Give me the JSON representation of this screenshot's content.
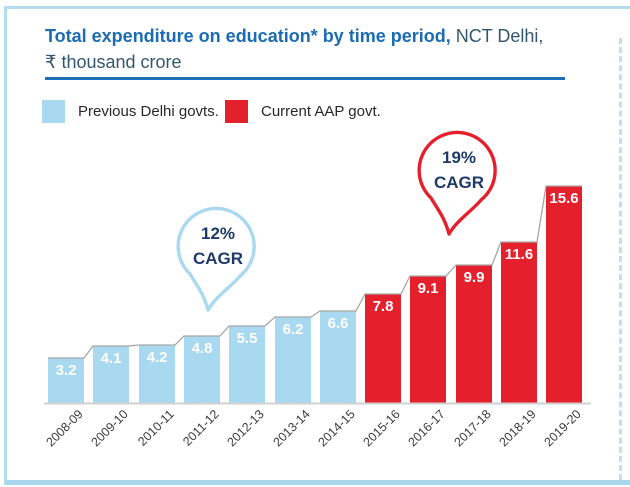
{
  "header": {
    "title_bold": "Total expenditure on education* by time period,",
    "title_rest": " NCT Delhi, ₹ thousand crore"
  },
  "legend": {
    "items": [
      {
        "label": "Previous Delhi govts.",
        "color": "#A9D9F1"
      },
      {
        "label": "Current AAP govt.",
        "color": "#E5202D"
      }
    ]
  },
  "annotations": [
    {
      "line1": "12%",
      "line2": "CAGR",
      "color": "#A9D9F1",
      "applies_to": "Previous Delhi govts."
    },
    {
      "line1": "19%",
      "line2": "CAGR",
      "color": "#E5202D",
      "applies_to": "Current AAP govt."
    }
  ],
  "chart_data": {
    "type": "bar",
    "title": "Total expenditure on education* by time period, NCT Delhi, ₹ thousand crore",
    "unit": "₹ thousand crore",
    "categories": [
      "2008-09",
      "2009-10",
      "2010-11",
      "2011-12",
      "2012-13",
      "2013-14",
      "2014-15",
      "2015-16",
      "2016-17",
      "2017-18",
      "2018-19",
      "2019-20"
    ],
    "series": [
      {
        "name": "Previous Delhi govts.",
        "color": "#A9D9F1",
        "categories": [
          "2008-09",
          "2009-10",
          "2010-11",
          "2011-12",
          "2012-13",
          "2013-14",
          "2014-15"
        ],
        "values": [
          3.2,
          4.1,
          4.2,
          4.8,
          5.5,
          6.2,
          6.6
        ],
        "cagr": "12%"
      },
      {
        "name": "Current AAP govt.",
        "color": "#E5202D",
        "categories": [
          "2015-16",
          "2016-17",
          "2017-18",
          "2018-19",
          "2019-20"
        ],
        "values": [
          7.8,
          9.1,
          9.9,
          11.6,
          15.6
        ],
        "cagr": "19%"
      }
    ],
    "ylim": [
      0,
      16
    ],
    "value_labels": "inside-top",
    "legend_position": "top-left",
    "grid": false
  }
}
